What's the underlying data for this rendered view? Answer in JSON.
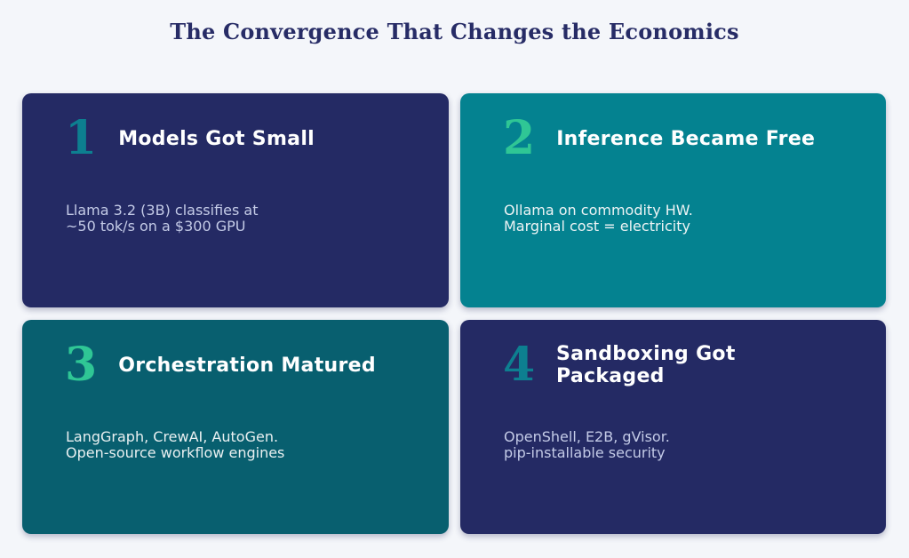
{
  "page": {
    "title": "The Convergence That Changes the Economics",
    "background": "#f4f6fa",
    "title_color": "#272c66"
  },
  "cards": [
    {
      "number": "1",
      "number_color": "#0d7f90",
      "background": "#242a64",
      "title": "Models Got Small",
      "body_lines": [
        "Llama 3.2 (3B) classifies at",
        "~50 tok/s on a $300 GPU"
      ],
      "body_color": "#c4cbe7"
    },
    {
      "number": "2",
      "number_color": "#2fc695",
      "background": "#048290",
      "title": "Inference Became Free",
      "body_lines": [
        "Ollama on commodity HW.",
        "Marginal cost = electricity"
      ],
      "body_color": "#eef4f5"
    },
    {
      "number": "3",
      "number_color": "#2fc695",
      "background": "#085f6f",
      "title": "Orchestration Matured",
      "body_lines": [
        "LangGraph, CrewAI, AutoGen.",
        "Open-source workflow engines"
      ],
      "body_color": "#e9f0f1"
    },
    {
      "number": "4",
      "number_color": "#0d7f90",
      "background": "#242a64",
      "title": "Sandboxing Got Packaged",
      "body_lines": [
        "OpenShell, E2B, gVisor.",
        "pip-installable security"
      ],
      "body_color": "#c4cbe7"
    }
  ]
}
